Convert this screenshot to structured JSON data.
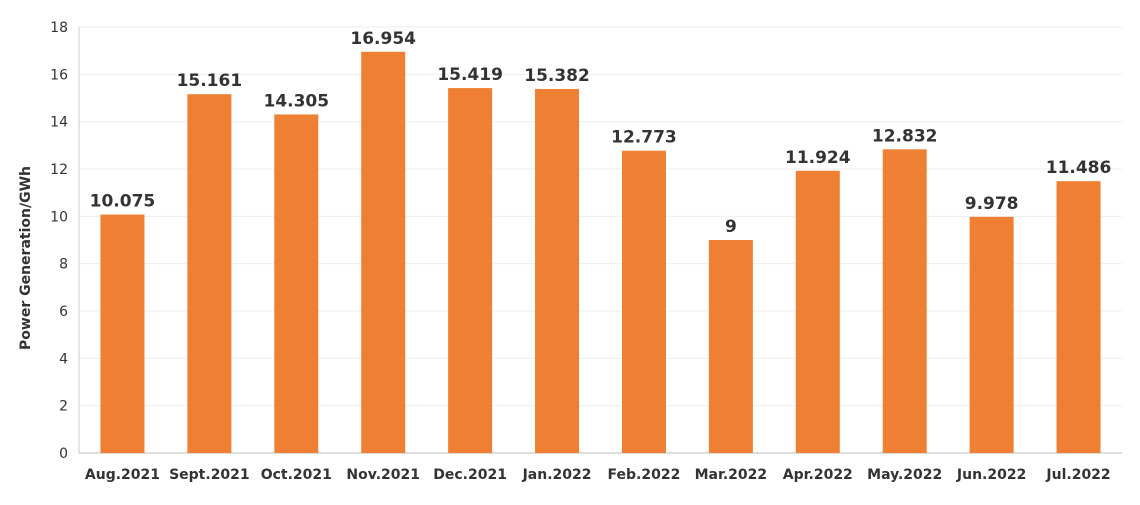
{
  "chart_data": {
    "type": "bar",
    "title": "",
    "xlabel": "",
    "ylabel": "Power Generation/GWh",
    "ylim": [
      0,
      18
    ],
    "y_ticks": [
      0,
      2,
      4,
      6,
      8,
      10,
      12,
      14,
      16,
      18
    ],
    "grid": "horizontal",
    "legend": "none",
    "bar_color": "#EE7F33",
    "categories": [
      "Aug.2021",
      "Sept.2021",
      "Oct.2021",
      "Nov.2021",
      "Dec.2021",
      "Jan.2022",
      "Feb.2022",
      "Mar.2022",
      "Apr.2022",
      "May.2022",
      "Jun.2022",
      "Jul.2022"
    ],
    "values": [
      10.075,
      15.161,
      14.305,
      16.954,
      15.419,
      15.382,
      12.773,
      9,
      11.924,
      12.832,
      9.978,
      11.486
    ],
    "value_labels": [
      "10.075",
      "15.161",
      "14.305",
      "16.954",
      "15.419",
      "15.382",
      "12.773",
      "9",
      "11.924",
      "12.832",
      "9.978",
      "11.486"
    ]
  }
}
